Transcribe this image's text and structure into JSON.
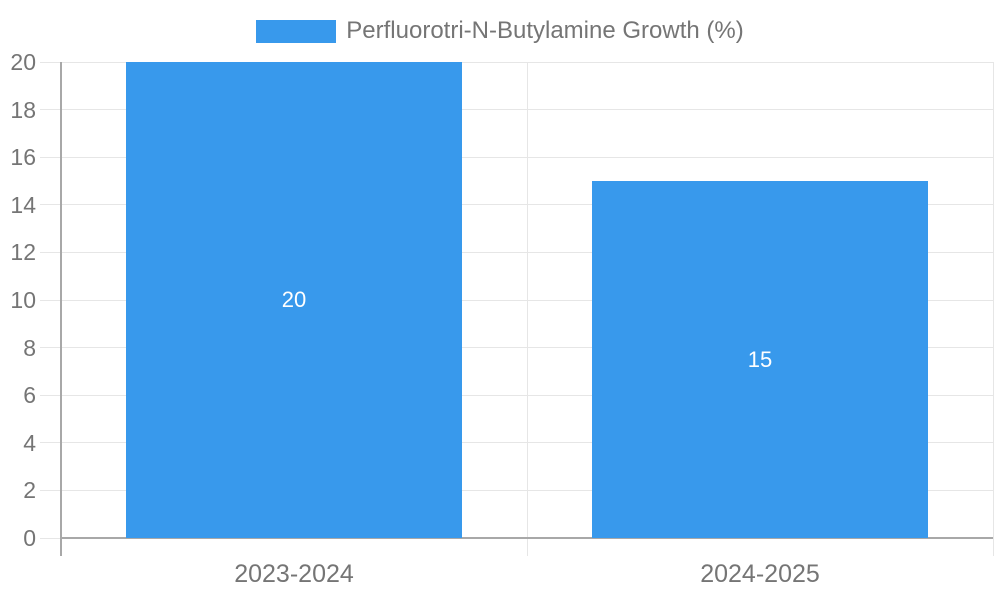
{
  "chart_data": {
    "type": "bar",
    "title": "",
    "legend_label": "Perfluorotri-N-Butylamine Growth (%)",
    "categories": [
      "2023-2024",
      "2024-2025"
    ],
    "values": [
      20,
      15
    ],
    "value_labels": [
      "20",
      "15"
    ],
    "series": [
      {
        "name": "Perfluorotri-N-Butylamine Growth (%)",
        "values": [
          20,
          15
        ]
      }
    ],
    "xlabel": "",
    "ylabel": "",
    "ylim": [
      0,
      20
    ],
    "ytick_step": 2,
    "ytick_labels": [
      "0",
      "2",
      "4",
      "6",
      "8",
      "10",
      "12",
      "14",
      "16",
      "18",
      "20"
    ],
    "grid": true,
    "legend_position": "top-center",
    "colors": {
      "bar": "#3899ec",
      "value_label": "#ffffff",
      "axis_text": "#757575",
      "legend_text": "#757575",
      "gridline": "#e6e6e6",
      "axis_line": "#a8a8a8"
    }
  }
}
